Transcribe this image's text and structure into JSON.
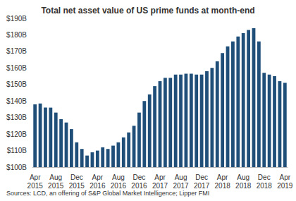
{
  "chart_data": {
    "type": "bar",
    "title": "Total net asset value of US prime funds at month-end",
    "source": "Sources: LCD, an offering of S&P Global Market Intelligence; Lipper FMI",
    "categories": [
      "Apr 2015",
      null,
      null,
      null,
      "Aug 2015",
      null,
      null,
      null,
      "Dec 2015",
      null,
      null,
      null,
      "Apr 2016",
      null,
      null,
      null,
      "Aug 2016",
      null,
      null,
      null,
      "Dec 2016",
      null,
      null,
      null,
      "Apr 2017",
      null,
      null,
      null,
      "Aug 2017",
      null,
      null,
      null,
      "Dec 2017",
      null,
      null,
      null,
      "Apr 2018",
      null,
      null,
      null,
      "Aug 2018",
      null,
      null,
      null,
      "Dec 2018",
      null,
      null,
      null,
      "Apr 2019"
    ],
    "values": [
      138,
      138.5,
      136,
      136,
      133,
      129,
      127,
      123,
      115,
      111,
      107,
      109,
      110,
      112,
      111,
      113,
      115,
      118,
      121,
      125,
      133,
      140,
      144,
      149,
      152,
      154,
      154,
      156,
      156,
      156.5,
      156.5,
      156,
      156,
      158,
      160,
      164,
      169,
      173,
      176,
      179,
      181,
      183,
      184,
      176,
      157,
      156,
      155,
      152,
      151
    ],
    "color": "#1f4e79",
    "ylim": [
      100,
      190
    ],
    "yticks": [
      {
        "value": 100,
        "label": "$100B"
      },
      {
        "value": 110,
        "label": "$110B"
      },
      {
        "value": 120,
        "label": "$120B"
      },
      {
        "value": 130,
        "label": "$130B"
      },
      {
        "value": 140,
        "label": "$140B"
      },
      {
        "value": 150,
        "label": "$150B"
      },
      {
        "value": 160,
        "label": "$160B"
      },
      {
        "value": 170,
        "label": "$170B"
      },
      {
        "value": 180,
        "label": "$180B"
      },
      {
        "value": 190,
        "label": "$190B"
      }
    ],
    "grid": false
  }
}
